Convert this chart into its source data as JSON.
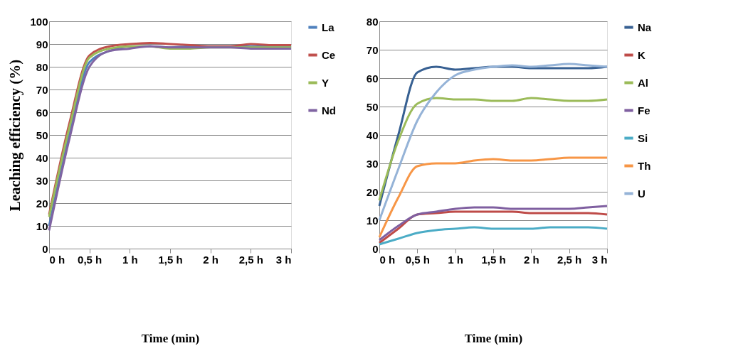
{
  "chart_data": [
    {
      "type": "line",
      "ylabel": "Leaching efficiency (%)",
      "xlabel": "Time (min)",
      "x": [
        0,
        0.25,
        0.5,
        0.75,
        1,
        1.25,
        1.5,
        1.75,
        2,
        2.25,
        2.5,
        2.75,
        3
      ],
      "xlim": [
        0,
        3
      ],
      "xticks": [
        {
          "value": 0,
          "label": "0 h"
        },
        {
          "value": 0.5,
          "label": "0,5 h"
        },
        {
          "value": 1,
          "label": "1 h"
        },
        {
          "value": 1.5,
          "label": "1,5 h"
        },
        {
          "value": 2,
          "label": "2 h"
        },
        {
          "value": 2.5,
          "label": "2,5 h"
        },
        {
          "value": 3,
          "label": "3 h"
        }
      ],
      "ylim": [
        0,
        100
      ],
      "yticks": [
        0,
        10,
        20,
        30,
        40,
        50,
        60,
        70,
        80,
        90,
        100
      ],
      "grid": "y",
      "legend": "right",
      "series": [
        {
          "name": "La",
          "color": "#4f81bd",
          "values": [
            10,
            50,
            82,
            87,
            89,
            89,
            88.5,
            89,
            89,
            89,
            89,
            89,
            89
          ]
        },
        {
          "name": "Ce",
          "color": "#c0504d",
          "values": [
            15,
            55,
            85,
            89,
            90,
            90.5,
            90,
            89.5,
            89,
            89,
            90,
            89.5,
            89.5
          ]
        },
        {
          "name": "Y",
          "color": "#9bbb59",
          "values": [
            14,
            53,
            84,
            88,
            89,
            89,
            88,
            88,
            88.5,
            88.5,
            88.5,
            88.5,
            88.5
          ]
        },
        {
          "name": "Nd",
          "color": "#8064a2",
          "values": [
            8,
            48,
            80,
            87,
            88,
            89,
            88.5,
            88.5,
            88.5,
            88.5,
            88,
            88,
            88
          ]
        }
      ]
    },
    {
      "type": "line",
      "xlabel": "Time (min)",
      "x": [
        0,
        0.25,
        0.5,
        0.75,
        1,
        1.25,
        1.5,
        1.75,
        2,
        2.25,
        2.5,
        2.75,
        3
      ],
      "xlim": [
        0,
        3
      ],
      "xticks": [
        {
          "value": 0,
          "label": "0 h"
        },
        {
          "value": 0.5,
          "label": "0,5 h"
        },
        {
          "value": 1,
          "label": "1 h"
        },
        {
          "value": 1.5,
          "label": "1,5 h"
        },
        {
          "value": 2,
          "label": "2 h"
        },
        {
          "value": 2.5,
          "label": "2,5 h"
        },
        {
          "value": 3,
          "label": "3 h"
        }
      ],
      "ylim": [
        0,
        80
      ],
      "yticks": [
        0,
        10,
        20,
        30,
        40,
        50,
        60,
        70,
        80
      ],
      "grid": "y",
      "legend": "right",
      "series": [
        {
          "name": "Na",
          "color": "#376092",
          "values": [
            15,
            40,
            62,
            64,
            63,
            63.5,
            64,
            64,
            63.5,
            63.5,
            63.5,
            63.5,
            64
          ]
        },
        {
          "name": "K",
          "color": "#be4b48",
          "values": [
            2,
            7,
            12,
            12.5,
            13,
            13,
            13,
            13,
            12.5,
            12.5,
            12.5,
            12.5,
            12
          ]
        },
        {
          "name": "Al",
          "color": "#9bbb59",
          "values": [
            17,
            38,
            51,
            53,
            52.5,
            52.5,
            52,
            52,
            53,
            52.5,
            52,
            52,
            52.5
          ]
        },
        {
          "name": "Fe",
          "color": "#7f5fa0",
          "values": [
            3,
            8,
            12,
            13,
            14,
            14.5,
            14.5,
            14,
            14,
            14,
            14,
            14.5,
            15
          ]
        },
        {
          "name": "Si",
          "color": "#4bacc6",
          "values": [
            1.5,
            3.5,
            5.5,
            6.5,
            7,
            7.5,
            7,
            7,
            7,
            7.5,
            7.5,
            7.5,
            7
          ]
        },
        {
          "name": "Th",
          "color": "#f79646",
          "values": [
            4,
            18,
            29,
            30,
            30,
            31,
            31.5,
            31,
            31,
            31.5,
            32,
            32,
            32
          ]
        },
        {
          "name": "U",
          "color": "#95b3d7",
          "values": [
            10,
            28,
            45,
            55,
            61,
            63,
            64,
            64.5,
            64,
            64.5,
            65,
            64.5,
            64
          ]
        }
      ]
    }
  ]
}
